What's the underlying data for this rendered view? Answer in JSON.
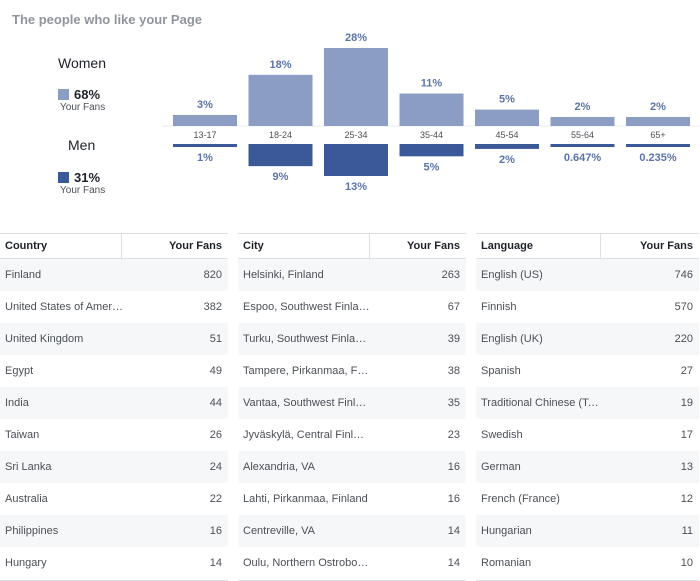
{
  "page_title": "The people who like your Page",
  "legend": {
    "women_label": "Women",
    "women_pct": "68%",
    "women_sub": "Your Fans",
    "men_label": "Men",
    "men_pct": "31%",
    "men_sub": "Your Fans"
  },
  "colors": {
    "women": "#8b9dc3",
    "men": "#3b5998",
    "label": "#5b74a8"
  },
  "chart_data": {
    "type": "bar",
    "categories": [
      "13-17",
      "18-24",
      "25-34",
      "35-44",
      "45-54",
      "55-64",
      "65+"
    ],
    "series": [
      {
        "name": "Women",
        "values": [
          3,
          18,
          28,
          11,
          5,
          2,
          2
        ],
        "labels": [
          "3%",
          "18%",
          "28%",
          "11%",
          "5%",
          "2%",
          "2%"
        ]
      },
      {
        "name": "Men",
        "values": [
          1,
          9,
          13,
          5,
          2,
          0.647,
          0.235
        ],
        "labels": [
          "1%",
          "9%",
          "13%",
          "5%",
          "2%",
          "0.647%",
          "0.235%"
        ]
      }
    ]
  },
  "tables": [
    {
      "header_name": "Country",
      "header_value": "Your Fans",
      "rows": [
        {
          "name": "Finland",
          "value": "820"
        },
        {
          "name": "United States of America",
          "value": "382"
        },
        {
          "name": "United Kingdom",
          "value": "51"
        },
        {
          "name": "Egypt",
          "value": "49"
        },
        {
          "name": "India",
          "value": "44"
        },
        {
          "name": "Taiwan",
          "value": "26"
        },
        {
          "name": "Sri Lanka",
          "value": "24"
        },
        {
          "name": "Australia",
          "value": "22"
        },
        {
          "name": "Philippines",
          "value": "16"
        },
        {
          "name": "Hungary",
          "value": "14"
        }
      ]
    },
    {
      "header_name": "City",
      "header_value": "Your Fans",
      "rows": [
        {
          "name": "Helsinki, Finland",
          "value": "263"
        },
        {
          "name": "Espoo, Southwest Finla…",
          "value": "67"
        },
        {
          "name": "Turku, Southwest Finla…",
          "value": "39"
        },
        {
          "name": "Tampere, Pirkanmaa, F…",
          "value": "38"
        },
        {
          "name": "Vantaa, Southwest Finl…",
          "value": "35"
        },
        {
          "name": "Jyväskylä, Central Finla…",
          "value": "23"
        },
        {
          "name": "Alexandria, VA",
          "value": "16"
        },
        {
          "name": "Lahti, Pirkanmaa, Finland",
          "value": "16"
        },
        {
          "name": "Centreville, VA",
          "value": "14"
        },
        {
          "name": "Oulu, Northern Ostrobo…",
          "value": "14"
        }
      ]
    },
    {
      "header_name": "Language",
      "header_value": "Your Fans",
      "rows": [
        {
          "name": "English (US)",
          "value": "746"
        },
        {
          "name": "Finnish",
          "value": "570"
        },
        {
          "name": "English (UK)",
          "value": "220"
        },
        {
          "name": "Spanish",
          "value": "27"
        },
        {
          "name": "Traditional Chinese (Tai…",
          "value": "19"
        },
        {
          "name": "Swedish",
          "value": "17"
        },
        {
          "name": "German",
          "value": "13"
        },
        {
          "name": "French (France)",
          "value": "12"
        },
        {
          "name": "Hungarian",
          "value": "11"
        },
        {
          "name": "Romanian",
          "value": "10"
        }
      ]
    }
  ]
}
